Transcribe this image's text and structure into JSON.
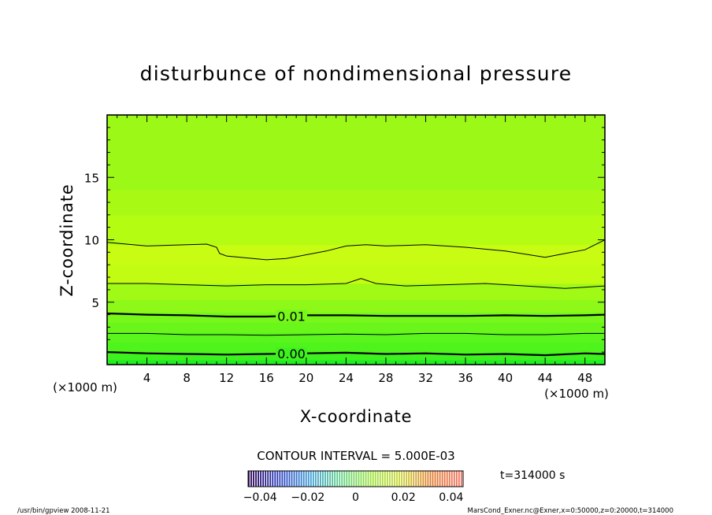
{
  "chart_data": {
    "type": "contour",
    "title": "disturbunce of nondimensional pressure",
    "xlabel": "X-coordinate",
    "ylabel": "Z-coordinate",
    "x_unit": "(×1000 m)",
    "y_unit": "(×1000 m)",
    "xlim": [
      0,
      50
    ],
    "ylim": [
      0,
      20
    ],
    "x_ticks": [
      4,
      8,
      12,
      16,
      20,
      24,
      28,
      32,
      36,
      40,
      44,
      48
    ],
    "y_ticks": [
      5,
      10,
      15
    ],
    "contour_interval_text": "CONTOUR INTERVAL = 5.000E-03",
    "fill_bands": [
      {
        "z0": 0,
        "z1": 0.4,
        "color": "#22ee22"
      },
      {
        "z0": 0.4,
        "z1": 1.0,
        "color": "#3ff21f"
      },
      {
        "z0": 1.0,
        "z1": 1.8,
        "color": "#4ff41d"
      },
      {
        "z0": 1.8,
        "z1": 2.6,
        "color": "#5af51c"
      },
      {
        "z0": 2.6,
        "z1": 3.4,
        "color": "#6af61a"
      },
      {
        "z0": 3.4,
        "z1": 4.2,
        "color": "#78f81a"
      },
      {
        "z0": 4.2,
        "z1": 5.2,
        "color": "#8ef818"
      },
      {
        "z0": 5.2,
        "z1": 6.5,
        "color": "#a0fa16"
      },
      {
        "z0": 6.5,
        "z1": 8.0,
        "color": "#c2fc12"
      },
      {
        "z0": 8.0,
        "z1": 9.6,
        "color": "#c8fc12"
      },
      {
        "z0": 9.6,
        "z1": 12.0,
        "color": "#b4fc12"
      },
      {
        "z0": 12.0,
        "z1": 14.0,
        "color": "#a8fa14"
      },
      {
        "z0": 14.0,
        "z1": 20.0,
        "color": "#9cf816"
      }
    ],
    "contours": [
      {
        "level": "0.00",
        "label": "0.00",
        "label_x": 17.8,
        "bold": true,
        "points": [
          [
            0,
            1.0
          ],
          [
            4,
            0.9
          ],
          [
            8,
            0.85
          ],
          [
            12,
            0.8
          ],
          [
            16,
            0.85
          ],
          [
            20,
            0.9
          ],
          [
            24,
            0.95
          ],
          [
            28,
            0.85
          ],
          [
            32,
            0.9
          ],
          [
            36,
            0.8
          ],
          [
            40,
            0.85
          ],
          [
            44,
            0.75
          ],
          [
            48,
            0.9
          ],
          [
            50,
            0.85
          ]
        ]
      },
      {
        "level": "0.005",
        "label": "",
        "bold": false,
        "points": [
          [
            0,
            2.5
          ],
          [
            4,
            2.5
          ],
          [
            8,
            2.4
          ],
          [
            12,
            2.4
          ],
          [
            16,
            2.35
          ],
          [
            20,
            2.4
          ],
          [
            24,
            2.45
          ],
          [
            28,
            2.4
          ],
          [
            32,
            2.5
          ],
          [
            36,
            2.5
          ],
          [
            40,
            2.4
          ],
          [
            44,
            2.4
          ],
          [
            48,
            2.5
          ],
          [
            50,
            2.5
          ]
        ]
      },
      {
        "level": "0.01",
        "label": "0.01",
        "label_x": 17.8,
        "bold": true,
        "points": [
          [
            0,
            4.1
          ],
          [
            4,
            4.0
          ],
          [
            8,
            3.95
          ],
          [
            12,
            3.85
          ],
          [
            16,
            3.85
          ],
          [
            20,
            3.95
          ],
          [
            24,
            3.95
          ],
          [
            28,
            3.9
          ],
          [
            32,
            3.9
          ],
          [
            36,
            3.9
          ],
          [
            40,
            3.95
          ],
          [
            44,
            3.9
          ],
          [
            48,
            3.95
          ],
          [
            50,
            4.0
          ]
        ]
      },
      {
        "level": "0.015",
        "label": "",
        "bold": false,
        "points": [
          [
            0,
            6.5
          ],
          [
            4,
            6.5
          ],
          [
            8,
            6.4
          ],
          [
            12,
            6.3
          ],
          [
            16,
            6.4
          ],
          [
            20,
            6.4
          ],
          [
            24,
            6.5
          ],
          [
            25.5,
            6.9
          ],
          [
            27,
            6.5
          ],
          [
            30,
            6.3
          ],
          [
            34,
            6.4
          ],
          [
            38,
            6.5
          ],
          [
            42,
            6.3
          ],
          [
            46,
            6.1
          ],
          [
            48,
            6.2
          ],
          [
            50,
            6.3
          ]
        ]
      },
      {
        "level": "0.02",
        "label": "",
        "bold": false,
        "points": [
          [
            0,
            9.8
          ],
          [
            4,
            9.5
          ],
          [
            8,
            9.6
          ],
          [
            10,
            9.65
          ],
          [
            11,
            9.4
          ],
          [
            11.3,
            8.9
          ],
          [
            12,
            8.7
          ],
          [
            16,
            8.4
          ],
          [
            18,
            8.5
          ],
          [
            22,
            9.1
          ],
          [
            24,
            9.5
          ],
          [
            26,
            9.6
          ],
          [
            28,
            9.5
          ],
          [
            32,
            9.6
          ],
          [
            36,
            9.4
          ],
          [
            40,
            9.1
          ],
          [
            44,
            8.6
          ],
          [
            46,
            8.9
          ],
          [
            48,
            9.2
          ],
          [
            50,
            10.0
          ]
        ]
      }
    ],
    "legend": {
      "tick_labels": [
        "−0.04",
        "−0.02",
        "0",
        "0.02",
        "0.04"
      ],
      "tick_values": [
        -0.04,
        -0.02,
        0,
        0.02,
        0.04
      ],
      "vmin": -0.045,
      "vmax": 0.045,
      "stops": [
        "#2a0050",
        "#2b3fbf",
        "#3a9ad8",
        "#5fd08a",
        "#9ae23a",
        "#c9d531",
        "#e07a2a",
        "#f07060"
      ]
    },
    "time_text": "t=314000 s",
    "footer_left": "/usr/bin/gpview   2008-11-21",
    "footer_right": "MarsCond_Exner.nc@Exner,x=0:50000,z=0:20000,t=314000"
  }
}
